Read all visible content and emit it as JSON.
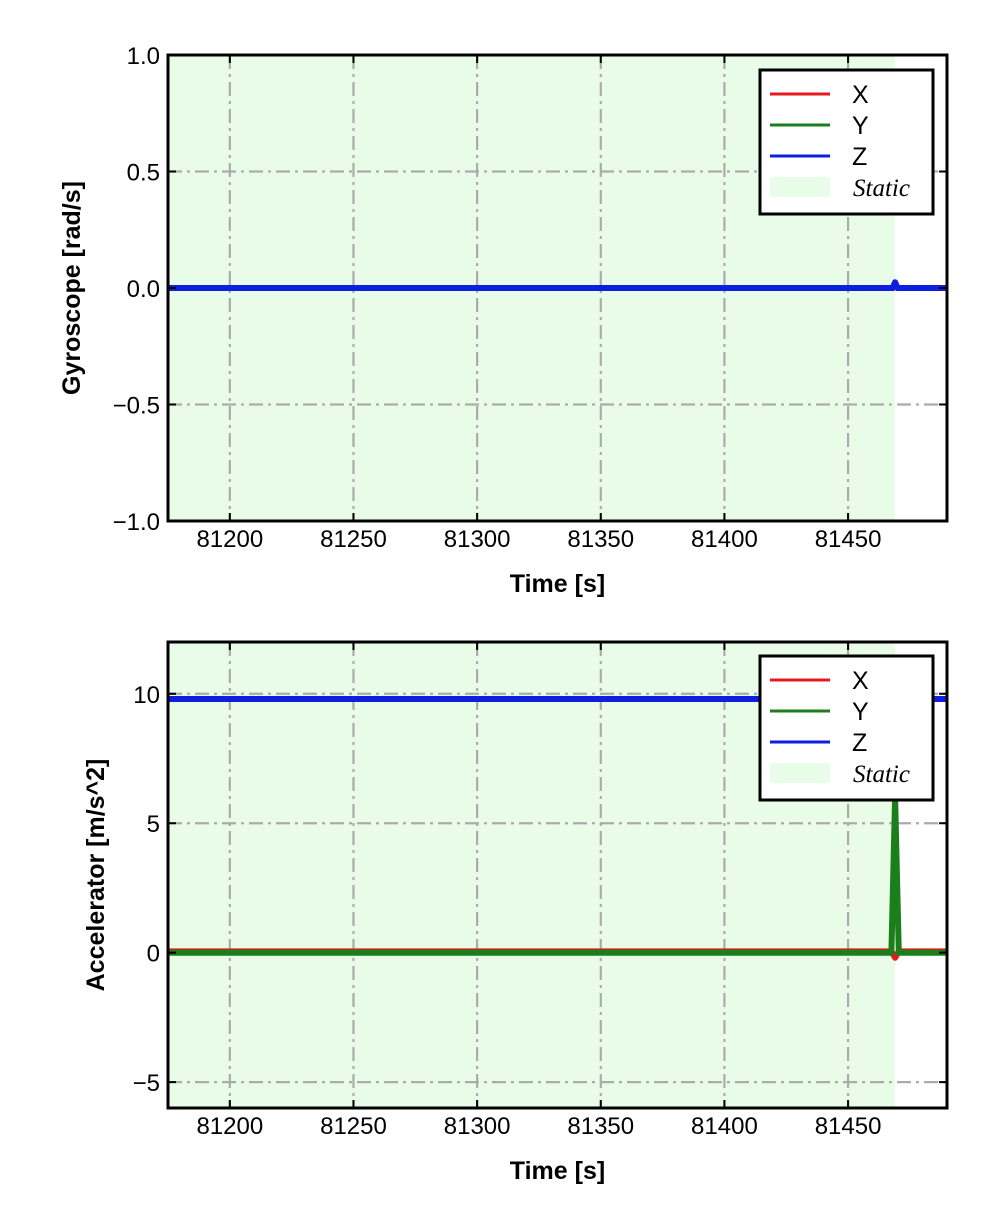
{
  "chart_data": [
    {
      "type": "line",
      "title": "",
      "xlabel": "Time [s]",
      "ylabel": "Gyroscope [rad/s]",
      "xlim": [
        81175,
        81490
      ],
      "ylim": [
        -1.0,
        1.0
      ],
      "xticks": [
        81200,
        81250,
        81300,
        81350,
        81400,
        81450
      ],
      "xtick_labels": [
        "81200",
        "81250",
        "81300",
        "81350",
        "81400",
        "81450"
      ],
      "yticks": [
        1.0,
        0.5,
        0.0,
        -0.5,
        -1.0
      ],
      "ytick_labels": [
        "1.0",
        "0.5",
        "0.0",
        "−0.5",
        "−1.0"
      ],
      "grid": true,
      "grid_style": "dash-dot",
      "legend_position": "top-right",
      "static_region": {
        "label": "Static",
        "x_start": 81175,
        "x_end": 81469,
        "color": "#e8fce8"
      },
      "series": [
        {
          "name": "X",
          "color": "#e41a1c",
          "x": [
            81175,
            81300,
            81468,
            81469,
            81470,
            81490
          ],
          "y": [
            0.0,
            0.0,
            0.0,
            0.005,
            0.0,
            0.0
          ]
        },
        {
          "name": "Y",
          "color": "#1a7f1a",
          "x": [
            81175,
            81300,
            81468,
            81469,
            81470,
            81490
          ],
          "y": [
            0.0,
            0.0,
            0.0,
            0.01,
            0.0,
            0.0
          ]
        },
        {
          "name": "Z",
          "color": "#0d1fe0",
          "x": [
            81175,
            81300,
            81468,
            81469,
            81470,
            81490
          ],
          "y": [
            0.0,
            0.0,
            0.0,
            0.025,
            0.0,
            0.0
          ]
        }
      ]
    },
    {
      "type": "line",
      "title": "",
      "xlabel": "Time [s]",
      "ylabel": "Accelerator [m/s^2]",
      "xlim": [
        81175,
        81490
      ],
      "ylim": [
        -6,
        12
      ],
      "xticks": [
        81200,
        81250,
        81300,
        81350,
        81400,
        81450
      ],
      "xtick_labels": [
        "81200",
        "81250",
        "81300",
        "81350",
        "81400",
        "81450"
      ],
      "yticks": [
        10,
        5,
        0,
        -5
      ],
      "ytick_labels": [
        "10",
        "5",
        "0",
        "−5"
      ],
      "grid": true,
      "grid_style": "dash-dot",
      "legend_position": "top-right",
      "static_region": {
        "label": "Static",
        "x_start": 81175,
        "x_end": 81469,
        "color": "#e8fce8"
      },
      "series": [
        {
          "name": "X",
          "color": "#e41a1c",
          "x": [
            81175,
            81300,
            81467.5,
            81469,
            81470.5,
            81490
          ],
          "y": [
            0.05,
            0.05,
            0.05,
            -0.2,
            0.05,
            0.05
          ]
        },
        {
          "name": "Y",
          "color": "#1a7f1a",
          "x": [
            81175,
            81300,
            81467.5,
            81469,
            81470.5,
            81490
          ],
          "y": [
            0.0,
            0.0,
            0.0,
            6.0,
            0.0,
            0.0
          ]
        },
        {
          "name": "Z",
          "color": "#0d1fe0",
          "x": [
            81175,
            81300,
            81467.5,
            81469,
            81470.5,
            81490
          ],
          "y": [
            9.8,
            9.8,
            9.8,
            9.8,
            9.8,
            9.8
          ]
        }
      ]
    }
  ]
}
